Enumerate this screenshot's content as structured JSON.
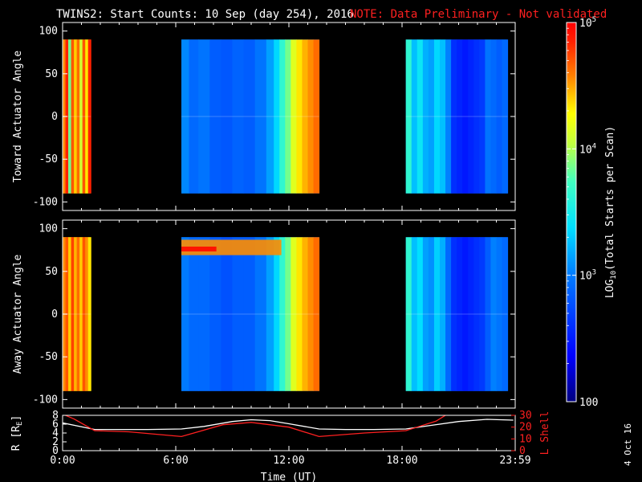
{
  "header": {
    "title": "TWINS2: Start Counts: 10 Sep (day 254), 2016",
    "note": "NOTE: Data Preliminary - Not validated",
    "note_color": "#ff2020"
  },
  "side_stamp": "4 Oct 16",
  "chart_data": [
    {
      "type": "heatmap",
      "name": "panel-toward",
      "ylabel": "Toward Actuator Angle",
      "ylim": [
        -110,
        110
      ],
      "yticks": [
        100,
        50,
        0,
        -50,
        -100
      ],
      "xlim": [
        0,
        24
      ],
      "bands": [
        {
          "start": 0.0,
          "end": 1.5,
          "level": 0.82
        },
        {
          "start": 6.3,
          "end": 13.6,
          "level": 0.32
        },
        {
          "start": 18.2,
          "end": 23.6,
          "level": 0.3
        }
      ],
      "columns": [
        [
          0.0,
          0.85
        ],
        [
          0.15,
          0.95
        ],
        [
          0.3,
          0.62
        ],
        [
          0.45,
          0.9
        ],
        [
          0.6,
          0.8
        ],
        [
          0.75,
          0.88
        ],
        [
          0.9,
          0.7
        ],
        [
          1.05,
          0.9
        ],
        [
          1.2,
          0.78
        ],
        [
          1.35,
          0.95
        ],
        [
          6.3,
          0.35
        ],
        [
          6.7,
          0.3
        ],
        [
          7.2,
          0.32
        ],
        [
          7.8,
          0.28
        ],
        [
          8.4,
          0.27
        ],
        [
          9.0,
          0.29
        ],
        [
          9.6,
          0.28
        ],
        [
          10.2,
          0.32
        ],
        [
          10.8,
          0.38
        ],
        [
          11.2,
          0.45
        ],
        [
          11.5,
          0.55
        ],
        [
          11.8,
          0.62
        ],
        [
          12.1,
          0.72
        ],
        [
          12.4,
          0.78
        ],
        [
          12.7,
          0.82
        ],
        [
          13.0,
          0.85
        ],
        [
          13.3,
          0.88
        ],
        [
          18.2,
          0.55
        ],
        [
          18.5,
          0.42
        ],
        [
          18.8,
          0.48
        ],
        [
          19.1,
          0.4
        ],
        [
          19.4,
          0.38
        ],
        [
          19.7,
          0.45
        ],
        [
          20.0,
          0.42
        ],
        [
          20.3,
          0.34
        ],
        [
          20.6,
          0.2
        ],
        [
          20.9,
          0.18
        ],
        [
          21.2,
          0.16
        ],
        [
          21.5,
          0.18
        ],
        [
          21.8,
          0.2
        ],
        [
          22.1,
          0.22
        ],
        [
          22.4,
          0.32
        ],
        [
          22.7,
          0.3
        ],
        [
          23.0,
          0.28
        ],
        [
          23.3,
          0.3
        ]
      ]
    },
    {
      "type": "heatmap",
      "name": "panel-away",
      "ylabel": "Away Actuator Angle",
      "ylim": [
        -110,
        110
      ],
      "yticks": [
        100,
        50,
        0,
        -50,
        -100
      ],
      "xlim": [
        0,
        24
      ],
      "bands": [
        {
          "start": 0.0,
          "end": 1.5,
          "level": 0.82
        },
        {
          "start": 6.3,
          "end": 13.6,
          "level": 0.32
        },
        {
          "start": 18.2,
          "end": 23.6,
          "level": 0.3
        }
      ],
      "columns": [
        [
          0.0,
          0.85
        ],
        [
          0.15,
          0.9
        ],
        [
          0.3,
          0.8
        ],
        [
          0.45,
          0.92
        ],
        [
          0.6,
          0.82
        ],
        [
          0.75,
          0.88
        ],
        [
          0.9,
          0.8
        ],
        [
          1.05,
          0.9
        ],
        [
          1.2,
          0.85
        ],
        [
          1.35,
          0.78
        ],
        [
          6.3,
          0.33
        ],
        [
          6.7,
          0.3
        ],
        [
          7.2,
          0.3
        ],
        [
          7.8,
          0.28
        ],
        [
          8.4,
          0.26
        ],
        [
          9.0,
          0.28
        ],
        [
          9.6,
          0.28
        ],
        [
          10.2,
          0.32
        ],
        [
          10.8,
          0.38
        ],
        [
          11.2,
          0.45
        ],
        [
          11.5,
          0.55
        ],
        [
          11.8,
          0.62
        ],
        [
          12.1,
          0.72
        ],
        [
          12.4,
          0.78
        ],
        [
          12.7,
          0.82
        ],
        [
          13.0,
          0.85
        ],
        [
          13.3,
          0.88
        ],
        [
          18.2,
          0.55
        ],
        [
          18.5,
          0.42
        ],
        [
          18.8,
          0.46
        ],
        [
          19.1,
          0.38
        ],
        [
          19.4,
          0.36
        ],
        [
          19.7,
          0.44
        ],
        [
          20.0,
          0.4
        ],
        [
          20.3,
          0.3
        ],
        [
          20.6,
          0.2
        ],
        [
          20.9,
          0.18
        ],
        [
          21.2,
          0.16
        ],
        [
          21.5,
          0.18
        ],
        [
          21.8,
          0.2
        ],
        [
          22.1,
          0.22
        ],
        [
          22.4,
          0.28
        ],
        [
          22.7,
          0.34
        ],
        [
          23.0,
          0.32
        ],
        [
          23.3,
          0.3
        ]
      ],
      "hot_band": {
        "angle": 75,
        "start": 6.3,
        "end": 11.6,
        "level": 0.85
      }
    },
    {
      "type": "line",
      "name": "panel-orbit",
      "ylabel": "R [R",
      "ylabel_sub": "E",
      "ylabel_close": "]",
      "ylim": [
        0,
        8
      ],
      "yticks": [
        8,
        6,
        4,
        2,
        0
      ],
      "y2label": "L Shell",
      "y2lim": [
        0,
        30
      ],
      "y2ticks": [
        30,
        20,
        10,
        0
      ],
      "xlim": [
        0,
        24
      ],
      "xticks": [
        0,
        6,
        12,
        18,
        24
      ],
      "xticklabels": [
        "0:00",
        "6:00",
        "12:00",
        "18:00",
        "23:59"
      ],
      "xlabel": "Time (UT)",
      "series": [
        {
          "color": "#ffffff",
          "axis": "left",
          "x": [
            0,
            1,
            1.7,
            3,
            4.5,
            6.3,
            7.5,
            9,
            10,
            11,
            12,
            13.6,
            15,
            16.5,
            18.2,
            19.5,
            21,
            22.5,
            23.9
          ],
          "y": [
            6.3,
            5.4,
            4.8,
            4.8,
            4.8,
            4.9,
            5.5,
            6.6,
            7.0,
            6.8,
            6.1,
            4.9,
            4.8,
            4.8,
            4.9,
            5.7,
            6.6,
            7.1,
            6.9
          ]
        },
        {
          "color": "#ff2020",
          "axis": "right",
          "x": [
            0,
            0.6,
            1.7,
            3.5,
            6.3,
            8.5,
            10.0,
            12.0,
            13.6,
            16.0,
            18.2,
            19.8,
            20.4
          ],
          "y": [
            31,
            27,
            17,
            16,
            12,
            22,
            24,
            20,
            12,
            15,
            17,
            25,
            31
          ]
        }
      ]
    }
  ],
  "colorbar": {
    "label": "LOG",
    "label_sub": "10",
    "label_rest": "(Total Starts per Scan)",
    "ticks": [
      {
        "value": 100,
        "text": "100",
        "pos": 0.0
      },
      {
        "value": 1000,
        "text": "10",
        "exp": "3",
        "pos": 0.3333
      },
      {
        "value": 10000,
        "text": "10",
        "exp": "4",
        "pos": 0.6667
      },
      {
        "value": 100000,
        "text": "10",
        "exp": "5",
        "pos": 1.0
      }
    ]
  }
}
